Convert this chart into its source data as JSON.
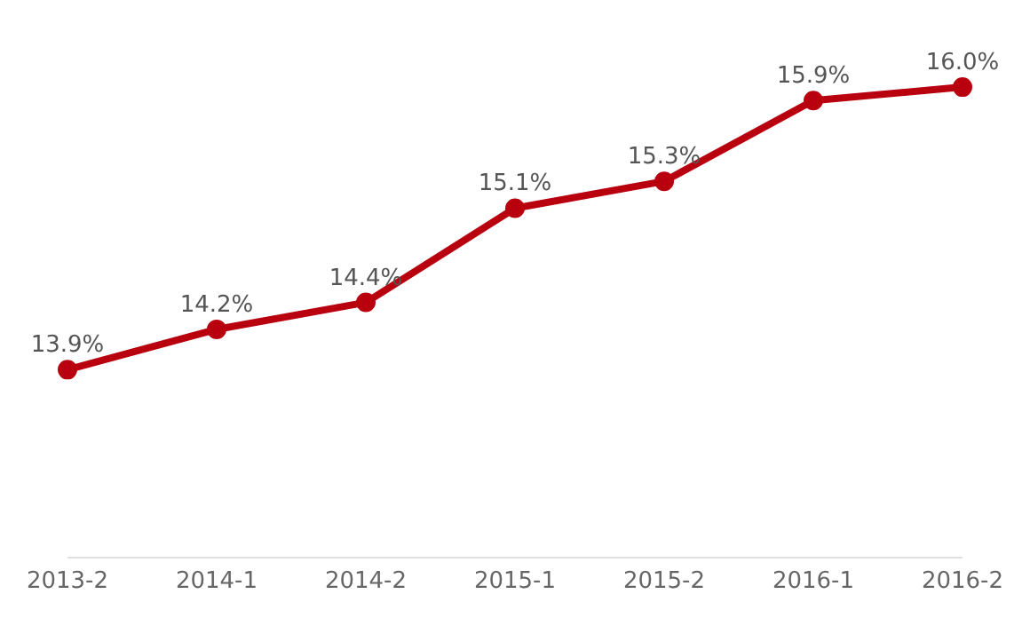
{
  "chart_data": {
    "type": "line",
    "categories": [
      "2013-2",
      "2014-1",
      "2014-2",
      "2015-1",
      "2015-2",
      "2016-1",
      "2016-2"
    ],
    "series": [
      {
        "color": "#b8000f",
        "values": [
          13.9,
          14.2,
          14.4,
          15.1,
          15.3,
          15.9,
          16.0
        ],
        "value_labels": [
          "13.9%",
          "14.2%",
          "14.4%",
          "15.1%",
          "15.3%",
          "15.9%",
          "16.0%"
        ]
      }
    ],
    "marker": "circle",
    "grid": false,
    "legend": false
  }
}
